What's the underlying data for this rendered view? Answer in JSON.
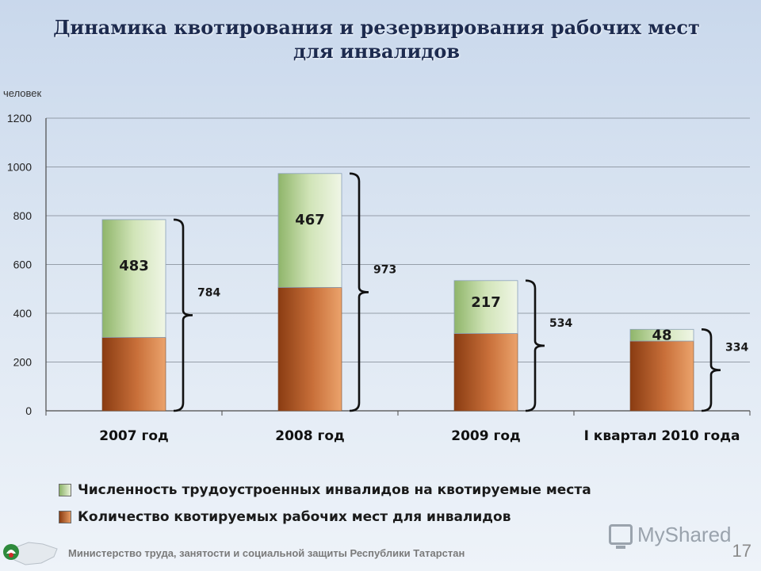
{
  "title_line1": "Динамика квотирования и резервирования рабочих мест",
  "title_line2": "для инвалидов",
  "unit_label": "человек",
  "chart_data": {
    "type": "bar",
    "stacked": true,
    "categories": [
      "2007 год",
      "2008 год",
      "2009 год",
      "I квартал 2010 года"
    ],
    "series": [
      {
        "name": "Количество квотируемых рабочих мест для инвалидов",
        "values": [
          301,
          506,
          317,
          286
        ],
        "color": "#b05a28"
      },
      {
        "name": "Численность трудоустроенных  инвалидов на квотируемые места",
        "values": [
          483,
          467,
          217,
          48
        ],
        "color": "#c4dba6"
      }
    ],
    "segment_labels": [
      "483",
      "467",
      "217",
      "48"
    ],
    "totals": [
      "784",
      "973",
      "534",
      "334"
    ],
    "ylim": [
      0,
      1200
    ],
    "yticks": [
      0,
      200,
      400,
      600,
      800,
      1000,
      1200
    ],
    "grid": true,
    "legend": "bottom"
  },
  "legend": {
    "green": "Численность трудоустроенных  инвалидов на квотируемые места",
    "brown": "Количество квотируемых рабочих мест для инвалидов"
  },
  "footer_text": "Министерство труда, занятости и социальной защиты Республики Татарстан",
  "page_number": "17",
  "watermark": "MyShared"
}
